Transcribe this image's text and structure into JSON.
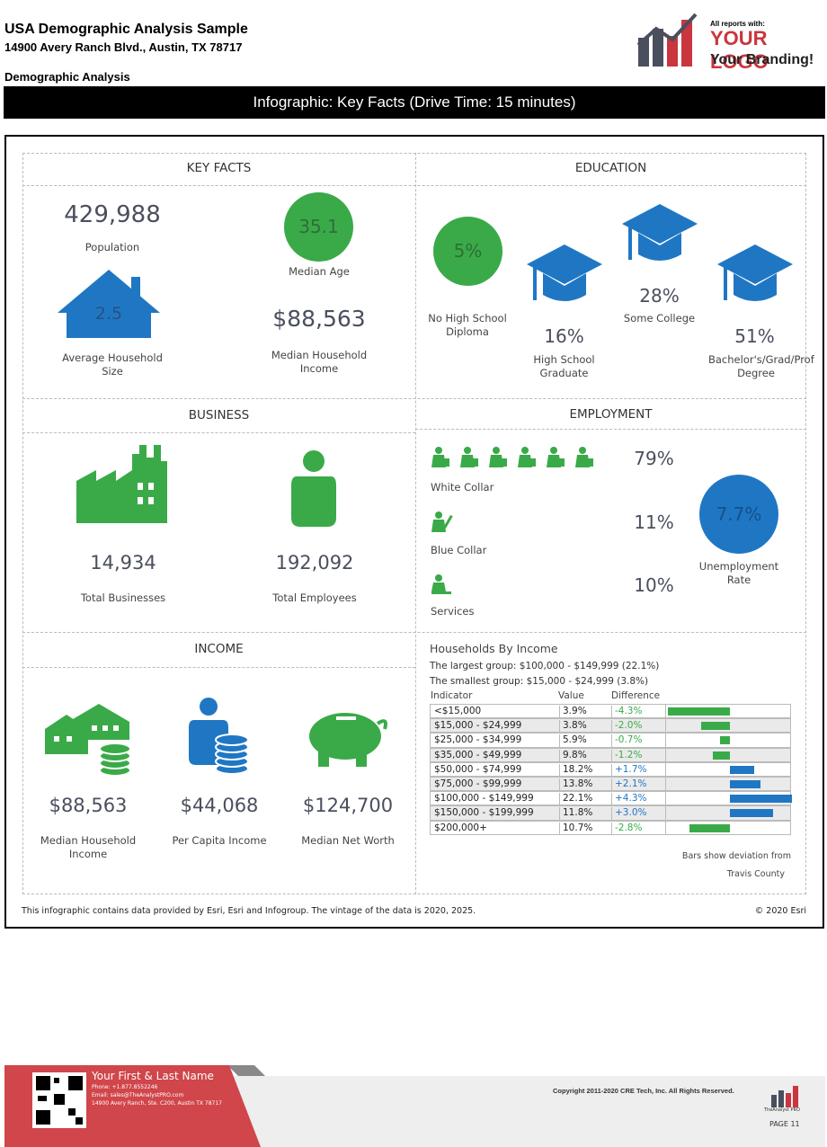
{
  "header": {
    "title": "USA Demographic Analysis Sample",
    "address": "14900 Avery Ranch Blvd., Austin, TX 78717",
    "section": "Demographic Analysis",
    "banner": "Infographic: Key Facts (Drive Time: 15 minutes)"
  },
  "logo": {
    "tagline": "All reports with:",
    "name": "YOUR LOGO",
    "slogan": "Your Branding!"
  },
  "key_facts": {
    "heading": "KEY FACTS",
    "population": {
      "value": "429,988",
      "label": "Population"
    },
    "median_age": {
      "value": "35.1",
      "label": "Median Age"
    },
    "household_size": {
      "value": "2.5",
      "label": "Average Household Size"
    },
    "household_income": {
      "value": "$88,563",
      "label": "Median Household Income"
    }
  },
  "education": {
    "heading": "EDUCATION",
    "items": [
      {
        "value": "5%",
        "label": "No High School Diploma"
      },
      {
        "value": "16%",
        "label": "High School Graduate"
      },
      {
        "value": "28%",
        "label": "Some College"
      },
      {
        "value": "51%",
        "label": "Bachelor's/Grad/Prof Degree"
      }
    ]
  },
  "business": {
    "heading": "BUSINESS",
    "businesses": {
      "value": "14,934",
      "label": "Total Businesses"
    },
    "employees": {
      "value": "192,092",
      "label": "Total Employees"
    }
  },
  "employment": {
    "heading": "EMPLOYMENT",
    "items": [
      {
        "value": "79%",
        "label": "White Collar"
      },
      {
        "value": "11%",
        "label": "Blue Collar"
      },
      {
        "value": "10%",
        "label": "Services"
      }
    ],
    "unemployment": {
      "value": "7.7%",
      "label": "Unemployment Rate"
    }
  },
  "income": {
    "heading": "INCOME",
    "items": [
      {
        "value": "$88,563",
        "label": "Median Household Income"
      },
      {
        "value": "$44,068",
        "label": "Per Capita Income"
      },
      {
        "value": "$124,700",
        "label": "Median Net Worth"
      }
    ]
  },
  "households": {
    "title": "Households By Income",
    "largest": "The largest group: $100,000 - $149,999 (22.1%)",
    "smallest": "The smallest group: $15,000 - $24,999 (3.8%)",
    "columns": [
      "Indicator",
      "Value",
      "Difference"
    ],
    "rows": [
      [
        "<$15,000",
        "3.9%",
        {
          "value": -4.3,
          "label": "-4.3%"
        }
      ],
      [
        "$15,000 - $24,999",
        "3.8%",
        {
          "value": -2.0,
          "label": "-2.0%"
        }
      ],
      [
        "$25,000 - $34,999",
        "5.9%",
        {
          "value": -0.7,
          "label": "-0.7%"
        }
      ],
      [
        "$35,000 - $49,999",
        "9.8%",
        {
          "value": -1.2,
          "label": "-1.2%"
        }
      ],
      [
        "$50,000 - $74,999",
        "18.2%",
        {
          "value": 1.7,
          "label": "+1.7%"
        }
      ],
      [
        "$75,000 - $99,999",
        "13.8%",
        {
          "value": 2.1,
          "label": "+2.1%"
        }
      ],
      [
        "$100,000 - $149,999",
        "22.1%",
        {
          "value": 4.3,
          "label": "+4.3%"
        }
      ],
      [
        "$150,000 - $199,999",
        "11.8%",
        {
          "value": 3.0,
          "label": "+3.0%"
        }
      ],
      [
        "$200,000+",
        "10.7%",
        {
          "value": -2.8,
          "label": "-2.8%"
        }
      ]
    ],
    "note_line1": "Bars show deviation from",
    "note_line2": "Travis County"
  },
  "notes": {
    "source": "This infographic contains data provided by Esri, Esri and Infogroup. The vintage of the data is 2020, 2025.",
    "copyright": "© 2020 Esri"
  },
  "footer": {
    "name": "Your First & Last Name",
    "phone": "Phone: +1.877.8552246",
    "email": "Email: sales@TheAnalystPRO.com",
    "address": "14900 Avery Ranch, Ste. C200, Austin TX 78717",
    "copyright": "Copyright 2011-2020 CRE Tech, Inc. All Rights Reserved.",
    "brand": "TheAnalyst PRO",
    "page": "PAGE 11"
  }
}
